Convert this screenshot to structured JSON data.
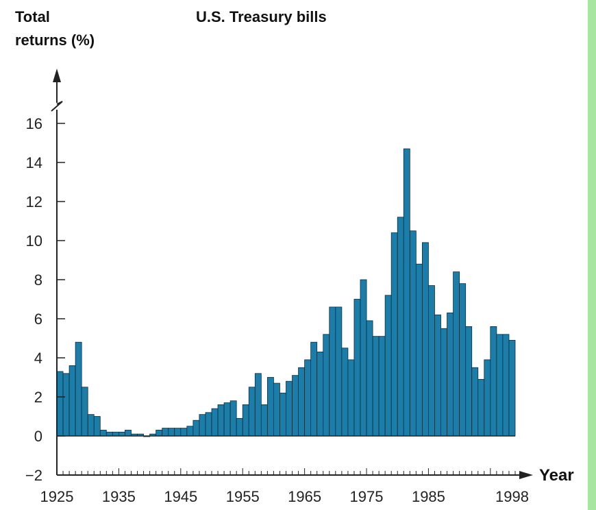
{
  "chart_data": {
    "type": "bar",
    "title": "U.S. Treasury bills",
    "ylabel_line1": "Total",
    "ylabel_line2": "returns (%)",
    "xlabel": "Year",
    "ylim": [
      -2,
      16
    ],
    "yticks": [
      -2,
      0,
      2,
      4,
      6,
      8,
      10,
      12,
      14,
      16
    ],
    "xlim": [
      1925,
      1998
    ],
    "xtick_labels": [
      "1925",
      "1935",
      "1945",
      "1955",
      "1965",
      "1975",
      "1985",
      "1998"
    ],
    "bar_color": "#1b7da8",
    "grid": false,
    "x": [
      1925,
      1926,
      1927,
      1928,
      1929,
      1930,
      1931,
      1932,
      1933,
      1934,
      1935,
      1936,
      1937,
      1938,
      1939,
      1940,
      1941,
      1942,
      1943,
      1944,
      1945,
      1946,
      1947,
      1948,
      1949,
      1950,
      1951,
      1952,
      1953,
      1954,
      1955,
      1956,
      1957,
      1958,
      1959,
      1960,
      1961,
      1962,
      1963,
      1964,
      1965,
      1966,
      1967,
      1968,
      1969,
      1970,
      1971,
      1972,
      1973,
      1974,
      1975,
      1976,
      1977,
      1978,
      1979,
      1980,
      1981,
      1982,
      1983,
      1984,
      1985,
      1986,
      1987,
      1988,
      1989,
      1990,
      1991,
      1992,
      1993,
      1994,
      1995,
      1996,
      1997,
      1998
    ],
    "values": [
      3.3,
      3.2,
      3.6,
      4.8,
      2.5,
      1.1,
      1.0,
      0.3,
      0.2,
      0.2,
      0.2,
      0.3,
      0.1,
      0.1,
      0.0,
      0.1,
      0.3,
      0.4,
      0.4,
      0.4,
      0.4,
      0.5,
      0.8,
      1.1,
      1.2,
      1.4,
      1.6,
      1.7,
      1.8,
      0.9,
      1.6,
      2.5,
      3.2,
      1.6,
      3.0,
      2.7,
      2.2,
      2.8,
      3.1,
      3.5,
      3.9,
      4.8,
      4.3,
      5.2,
      6.6,
      6.6,
      4.5,
      3.9,
      7.0,
      8.0,
      5.9,
      5.1,
      5.1,
      7.2,
      10.4,
      11.2,
      14.7,
      10.5,
      8.8,
      9.9,
      7.7,
      6.2,
      5.5,
      6.3,
      8.4,
      7.8,
      5.6,
      3.5,
      2.9,
      3.9,
      5.6,
      5.2,
      5.2,
      4.9
    ]
  },
  "accent_green": "#a6e6a0",
  "axis_color": "#222222"
}
